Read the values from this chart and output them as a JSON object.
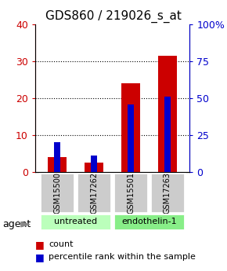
{
  "title": "GDS860 / 219026_s_at",
  "samples": [
    "GSM15500",
    "GSM17262",
    "GSM15501",
    "GSM17263"
  ],
  "group_labels": [
    "untreated",
    "endothelin-1"
  ],
  "count_values": [
    4,
    2.5,
    24,
    31.5
  ],
  "percentile_values": [
    20,
    11,
    46,
    51
  ],
  "left_ylim": [
    0,
    40
  ],
  "right_ylim": [
    0,
    100
  ],
  "left_yticks": [
    0,
    10,
    20,
    30,
    40
  ],
  "right_yticks": [
    0,
    25,
    50,
    75,
    100
  ],
  "right_yticklabels": [
    "0",
    "25",
    "50",
    "75",
    "100%"
  ],
  "count_color": "#cc0000",
  "percentile_color": "#0000cc",
  "group_untreated_color": "#bbffbb",
  "group_endothelin_color": "#88ee88",
  "sample_box_color": "#cccccc",
  "agent_label": "agent",
  "legend_count": "count",
  "legend_percentile": "percentile rank within the sample",
  "title_fontsize": 11,
  "tick_fontsize": 9,
  "sample_fontsize": 7,
  "group_fontsize": 8,
  "legend_fontsize": 8
}
